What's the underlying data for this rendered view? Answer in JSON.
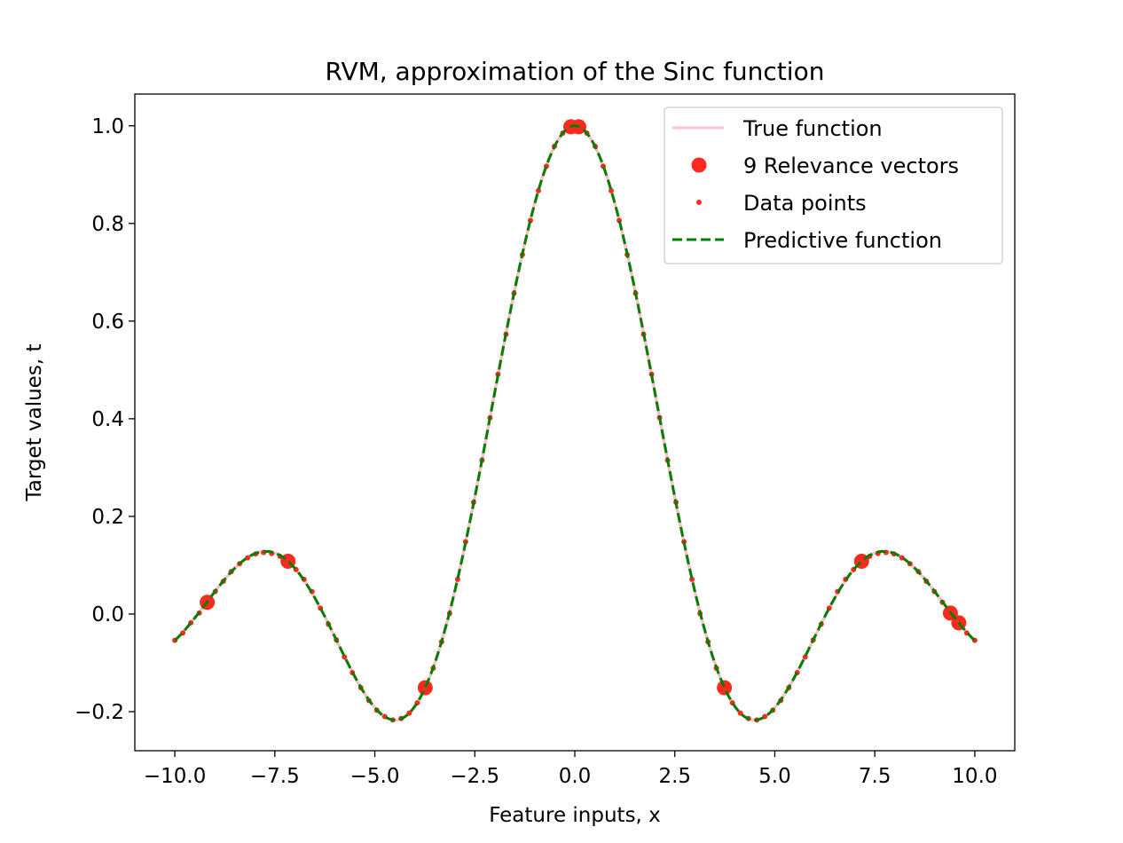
{
  "chart_data": {
    "type": "line",
    "title": "RVM, approximation of the Sinc function",
    "xlabel": "Feature inputs, x",
    "ylabel": "Target values, t",
    "xlim": [
      -11.0,
      11.0
    ],
    "ylim": [
      -0.28,
      1.065
    ],
    "xticks": [
      -10.0,
      -7.5,
      -5.0,
      -2.5,
      0.0,
      2.5,
      5.0,
      7.5,
      10.0
    ],
    "xtick_labels": [
      "−10.0",
      "−7.5",
      "−5.0",
      "−2.5",
      "0.0",
      "2.5",
      "5.0",
      "7.5",
      "10.0"
    ],
    "yticks": [
      -0.2,
      0.0,
      0.2,
      0.4,
      0.6,
      0.8,
      1.0
    ],
    "ytick_labels": [
      "−0.2",
      "0.0",
      "0.2",
      "0.4",
      "0.6",
      "0.8",
      "1.0"
    ],
    "grid": false,
    "legend_position": "top-right",
    "legend": [
      {
        "label": "True function",
        "style": "line",
        "color": "#ffc0cb"
      },
      {
        "label": "9 Relevance vectors",
        "style": "large-dot",
        "color": "#ff2a1f"
      },
      {
        "label": "Data points",
        "style": "small-dot",
        "color": "#ff2a1f"
      },
      {
        "label": "Predictive function",
        "style": "dashed-line",
        "color": "#008000"
      }
    ],
    "series": [
      {
        "name": "True function",
        "kind": "line",
        "color": "#ffc0cb",
        "function": "sin(x)/x",
        "x_range": [
          -10.0,
          10.0
        ]
      },
      {
        "name": "9 Relevance vectors",
        "kind": "scatter",
        "color": "#ff2a1f",
        "x": [
          -9.19,
          -7.17,
          -3.74,
          -0.1,
          0.1,
          3.74,
          7.17,
          9.39,
          9.6
        ],
        "y": [
          0.024,
          0.108,
          -0.151,
          0.998,
          0.998,
          -0.151,
          0.108,
          0.002,
          -0.018
        ]
      },
      {
        "name": "Data points",
        "kind": "scatter",
        "color": "#ff2a1f",
        "x": [
          -10.0,
          -9.8,
          -9.6,
          -9.39,
          -9.19,
          -8.99,
          -8.79,
          -8.59,
          -8.38,
          -8.18,
          -7.98,
          -7.78,
          -7.58,
          -7.37,
          -7.17,
          -6.97,
          -6.77,
          -6.57,
          -6.36,
          -6.16,
          -5.96,
          -5.76,
          -5.56,
          -5.35,
          -5.15,
          -4.95,
          -4.75,
          -4.55,
          -4.34,
          -4.14,
          -3.94,
          -3.74,
          -3.54,
          -3.33,
          -3.13,
          -2.93,
          -2.73,
          -2.53,
          -2.32,
          -2.12,
          -1.92,
          -1.72,
          -1.52,
          -1.31,
          -1.11,
          -0.91,
          -0.71,
          -0.51,
          -0.3,
          -0.1,
          0.1,
          0.3,
          0.51,
          0.71,
          0.91,
          1.11,
          1.31,
          1.52,
          1.72,
          1.92,
          2.12,
          2.32,
          2.53,
          2.73,
          2.93,
          3.13,
          3.33,
          3.54,
          3.74,
          3.94,
          4.14,
          4.34,
          4.55,
          4.75,
          4.95,
          5.15,
          5.35,
          5.56,
          5.76,
          5.96,
          6.16,
          6.36,
          6.57,
          6.77,
          6.97,
          7.17,
          7.37,
          7.58,
          7.78,
          7.98,
          8.18,
          8.38,
          8.59,
          8.79,
          8.99,
          9.19,
          9.39,
          9.6,
          9.8,
          10.0
        ],
        "y": [
          -0.054,
          -0.039,
          -0.018,
          0.002,
          0.024,
          0.046,
          0.067,
          0.087,
          0.103,
          0.115,
          0.123,
          0.126,
          0.124,
          0.118,
          0.108,
          0.091,
          0.071,
          0.046,
          0.012,
          -0.021,
          -0.053,
          -0.088,
          -0.12,
          -0.151,
          -0.177,
          -0.197,
          -0.21,
          -0.217,
          -0.214,
          -0.203,
          -0.182,
          -0.151,
          -0.111,
          -0.057,
          0.001,
          0.071,
          0.148,
          0.229,
          0.315,
          0.402,
          0.491,
          0.573,
          0.657,
          0.736,
          0.806,
          0.867,
          0.917,
          0.958,
          0.985,
          0.998,
          0.998,
          0.985,
          0.958,
          0.917,
          0.867,
          0.806,
          0.736,
          0.657,
          0.573,
          0.491,
          0.402,
          0.315,
          0.229,
          0.148,
          0.071,
          0.001,
          -0.057,
          -0.111,
          -0.151,
          -0.182,
          -0.203,
          -0.214,
          -0.217,
          -0.21,
          -0.197,
          -0.177,
          -0.151,
          -0.12,
          -0.088,
          -0.053,
          -0.021,
          0.012,
          0.046,
          0.071,
          0.091,
          0.108,
          0.118,
          0.124,
          0.126,
          0.123,
          0.115,
          0.103,
          0.087,
          0.067,
          0.046,
          0.024,
          0.002,
          -0.018,
          -0.039,
          -0.054
        ]
      },
      {
        "name": "Predictive function",
        "kind": "line",
        "style": "dashed",
        "color": "#008000",
        "function": "sin(x)/x",
        "x_range": [
          -10.0,
          10.0
        ]
      }
    ]
  }
}
